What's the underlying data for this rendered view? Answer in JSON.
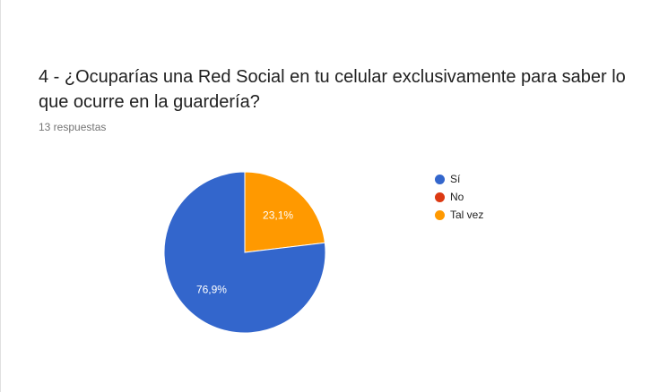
{
  "question": {
    "title": "4 - ¿Ocuparías una Red Social en tu celular exclusivamente para saber lo que ocurre en la guardería?",
    "responses": "13 respuestas"
  },
  "chart_data": {
    "type": "pie",
    "categories": [
      "Sí",
      "No",
      "Tal vez"
    ],
    "values": [
      76.9,
      0,
      23.1
    ],
    "labels": [
      "76,9%",
      "",
      "23,1%"
    ],
    "colors": [
      "#3366cc",
      "#dc3912",
      "#ff9900"
    ],
    "legend": "right"
  }
}
